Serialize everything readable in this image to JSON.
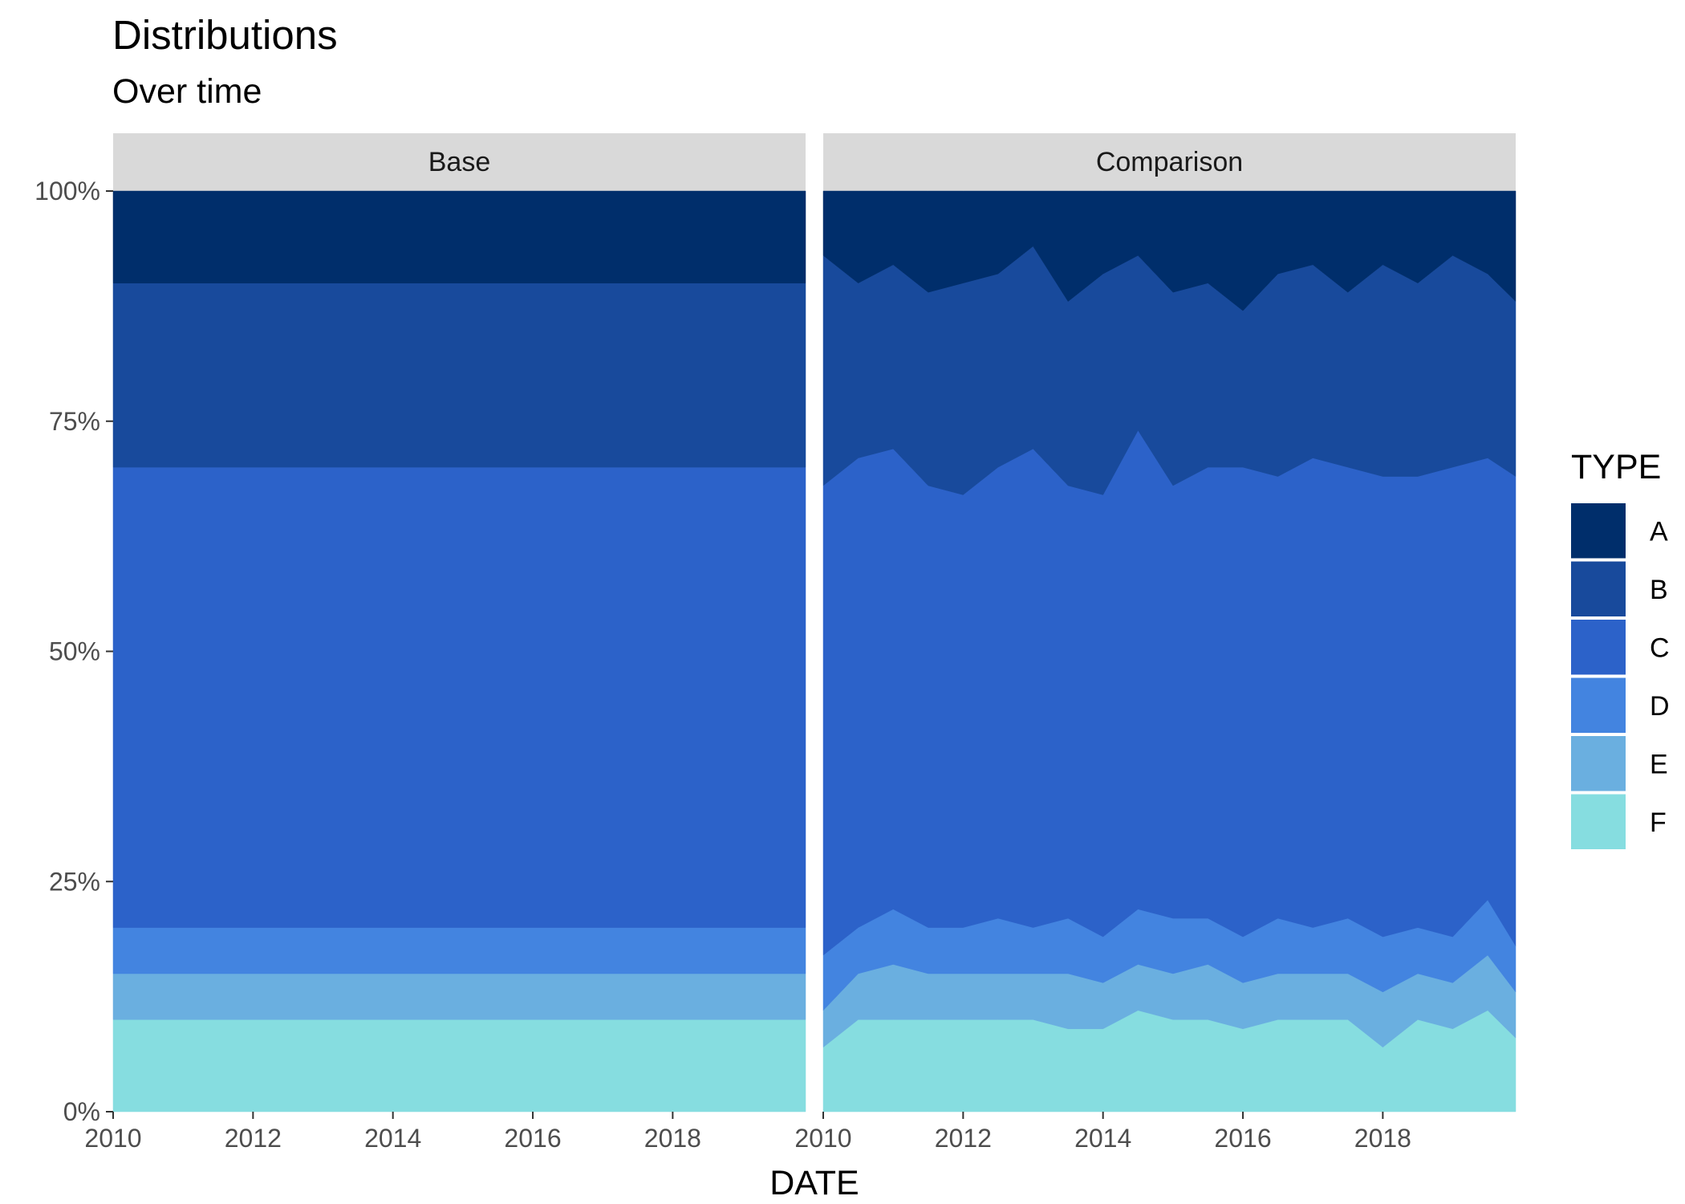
{
  "title": "Distributions",
  "subtitle": "Over time",
  "chart_data": {
    "type": "area",
    "stacked": true,
    "normalized": true,
    "title": "Distributions",
    "subtitle": "Over time",
    "xlabel": "DATE",
    "ylabel": "",
    "xlim": [
      2010,
      2019.9
    ],
    "ylim": [
      0,
      1
    ],
    "x_ticks": [
      "2010",
      "2012",
      "2014",
      "2016",
      "2018"
    ],
    "y_ticks": [
      "0%",
      "25%",
      "50%",
      "75%",
      "100%"
    ],
    "grid": false,
    "legend": {
      "title": "TYPE",
      "position": "right",
      "entries": [
        "A",
        "B",
        "C",
        "D",
        "E",
        "F"
      ]
    },
    "colors": {
      "A": "#002e6b",
      "B": "#184a9c",
      "C": "#2c62c9",
      "D": "#4384e0",
      "E": "#6aafe0",
      "F": "#86dde0"
    },
    "panels": [
      {
        "name": "Base",
        "x": [
          2010,
          2019.9
        ],
        "series": [
          {
            "name": "A",
            "values": [
              0.1,
              0.1
            ]
          },
          {
            "name": "B",
            "values": [
              0.2,
              0.2
            ]
          },
          {
            "name": "C",
            "values": [
              0.5,
              0.5
            ]
          },
          {
            "name": "D",
            "values": [
              0.05,
              0.05
            ]
          },
          {
            "name": "E",
            "values": [
              0.05,
              0.05
            ]
          },
          {
            "name": "F",
            "values": [
              0.1,
              0.1
            ]
          }
        ]
      },
      {
        "name": "Comparison",
        "x": [
          2010.0,
          2010.5,
          2011.0,
          2011.5,
          2012.0,
          2012.5,
          2013.0,
          2013.5,
          2014.0,
          2014.5,
          2015.0,
          2015.5,
          2016.0,
          2016.5,
          2017.0,
          2017.5,
          2018.0,
          2018.5,
          2019.0,
          2019.5,
          2019.9
        ],
        "series": [
          {
            "name": "A",
            "values": [
              0.07,
              0.1,
              0.08,
              0.11,
              0.1,
              0.09,
              0.06,
              0.12,
              0.09,
              0.07,
              0.11,
              0.1,
              0.13,
              0.09,
              0.08,
              0.11,
              0.08,
              0.1,
              0.07,
              0.09,
              0.12
            ]
          },
          {
            "name": "B",
            "values": [
              0.25,
              0.19,
              0.2,
              0.21,
              0.23,
              0.21,
              0.22,
              0.2,
              0.24,
              0.19,
              0.21,
              0.2,
              0.17,
              0.22,
              0.21,
              0.19,
              0.23,
              0.21,
              0.23,
              0.2,
              0.19
            ]
          },
          {
            "name": "C",
            "values": [
              0.51,
              0.51,
              0.5,
              0.48,
              0.47,
              0.49,
              0.52,
              0.47,
              0.48,
              0.52,
              0.47,
              0.49,
              0.51,
              0.48,
              0.51,
              0.49,
              0.5,
              0.49,
              0.51,
              0.48,
              0.51
            ]
          },
          {
            "name": "D",
            "values": [
              0.06,
              0.05,
              0.06,
              0.05,
              0.05,
              0.06,
              0.05,
              0.06,
              0.05,
              0.06,
              0.06,
              0.05,
              0.05,
              0.06,
              0.05,
              0.06,
              0.06,
              0.05,
              0.05,
              0.06,
              0.05
            ]
          },
          {
            "name": "E",
            "values": [
              0.04,
              0.05,
              0.06,
              0.05,
              0.05,
              0.05,
              0.05,
              0.06,
              0.05,
              0.05,
              0.05,
              0.06,
              0.05,
              0.05,
              0.05,
              0.05,
              0.06,
              0.05,
              0.05,
              0.06,
              0.05
            ]
          },
          {
            "name": "F",
            "values": [
              0.07,
              0.1,
              0.1,
              0.1,
              0.1,
              0.1,
              0.1,
              0.09,
              0.09,
              0.11,
              0.1,
              0.1,
              0.09,
              0.1,
              0.1,
              0.1,
              0.07,
              0.1,
              0.09,
              0.11,
              0.08
            ]
          }
        ]
      }
    ]
  }
}
